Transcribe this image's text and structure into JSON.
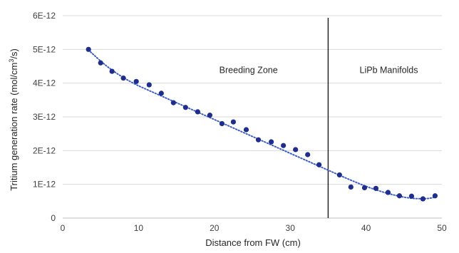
{
  "chart_data": {
    "type": "scatter",
    "title": "",
    "xlabel": "Distance from FW (cm)",
    "ylabel": {
      "main": "Tritium generation rate  (mol/cm",
      "sup": "3",
      "tail": "/s)"
    },
    "xlim": [
      0,
      50
    ],
    "ylim": [
      0,
      6e-12
    ],
    "x_ticks": [
      {
        "value": 0,
        "label": "0"
      },
      {
        "value": 10,
        "label": "10"
      },
      {
        "value": 20,
        "label": "20"
      },
      {
        "value": 30,
        "label": "30"
      },
      {
        "value": 40,
        "label": "40"
      },
      {
        "value": 50,
        "label": "50"
      }
    ],
    "y_ticks": [
      {
        "value": 0,
        "label": "0"
      },
      {
        "value": 1e-12,
        "label": "1E-12"
      },
      {
        "value": 2e-12,
        "label": "2E-12"
      },
      {
        "value": 3e-12,
        "label": "3E-12"
      },
      {
        "value": 4e-12,
        "label": "4E-12"
      },
      {
        "value": 5e-12,
        "label": "5E-12"
      },
      {
        "value": 6e-12,
        "label": "6E-12"
      }
    ],
    "grid": {
      "horizontal": true,
      "vertical": false
    },
    "colors": {
      "points": "#1f2d8c",
      "trend": "#3a5fc8",
      "grid": "#d9d9d9",
      "divider": "#1a1a1a"
    },
    "series": [
      {
        "x": [
          3.4,
          5.0,
          6.5,
          8.0,
          9.7,
          11.4,
          13.0,
          14.6,
          16.2,
          17.8,
          19.4,
          21.0,
          22.5,
          24.2,
          25.8,
          27.5,
          29.1,
          30.7,
          32.3,
          33.8,
          36.5,
          38.0,
          39.8,
          41.3,
          42.9,
          44.4,
          46.0,
          47.5,
          49.1
        ],
        "y": [
          5e-12,
          4.6e-12,
          4.35e-12,
          4.15e-12,
          4.05e-12,
          3.95e-12,
          3.7e-12,
          3.42e-12,
          3.28e-12,
          3.15e-12,
          3.05e-12,
          2.8e-12,
          2.85e-12,
          2.62e-12,
          2.32e-12,
          2.26e-12,
          2.15e-12,
          2.03e-12,
          1.88e-12,
          1.58e-12,
          1.28e-12,
          9.2e-13,
          9e-13,
          8.8e-13,
          7.6e-13,
          6.6e-13,
          6.5e-13,
          5.7e-13,
          6.6e-13
        ]
      }
    ],
    "trendline": {
      "style": "dotted",
      "x": [
        3.4,
        6,
        9,
        12,
        15,
        18,
        21,
        24,
        27,
        30,
        33,
        35,
        38,
        41,
        44,
        46,
        48,
        49.1
      ],
      "y": [
        4.98e-12,
        4.45e-12,
        4.02e-12,
        3.72e-12,
        3.42e-12,
        3.12e-12,
        2.82e-12,
        2.52e-12,
        2.22e-12,
        1.92e-12,
        1.62e-12,
        1.42e-12,
        1.12e-12,
        8.5e-13,
        6.6e-13,
        5.8e-13,
        5.7e-13,
        6.2e-13
      ]
    },
    "divider": {
      "x": 35
    },
    "annotations": [
      {
        "id": "breeding-zone",
        "text": "Breeding Zone",
        "x": 24.5,
        "y": 4.3e-12
      },
      {
        "id": "lipb-manifolds",
        "text": "LiPb Manifolds",
        "x": 43,
        "y": 4.3e-12
      }
    ]
  }
}
